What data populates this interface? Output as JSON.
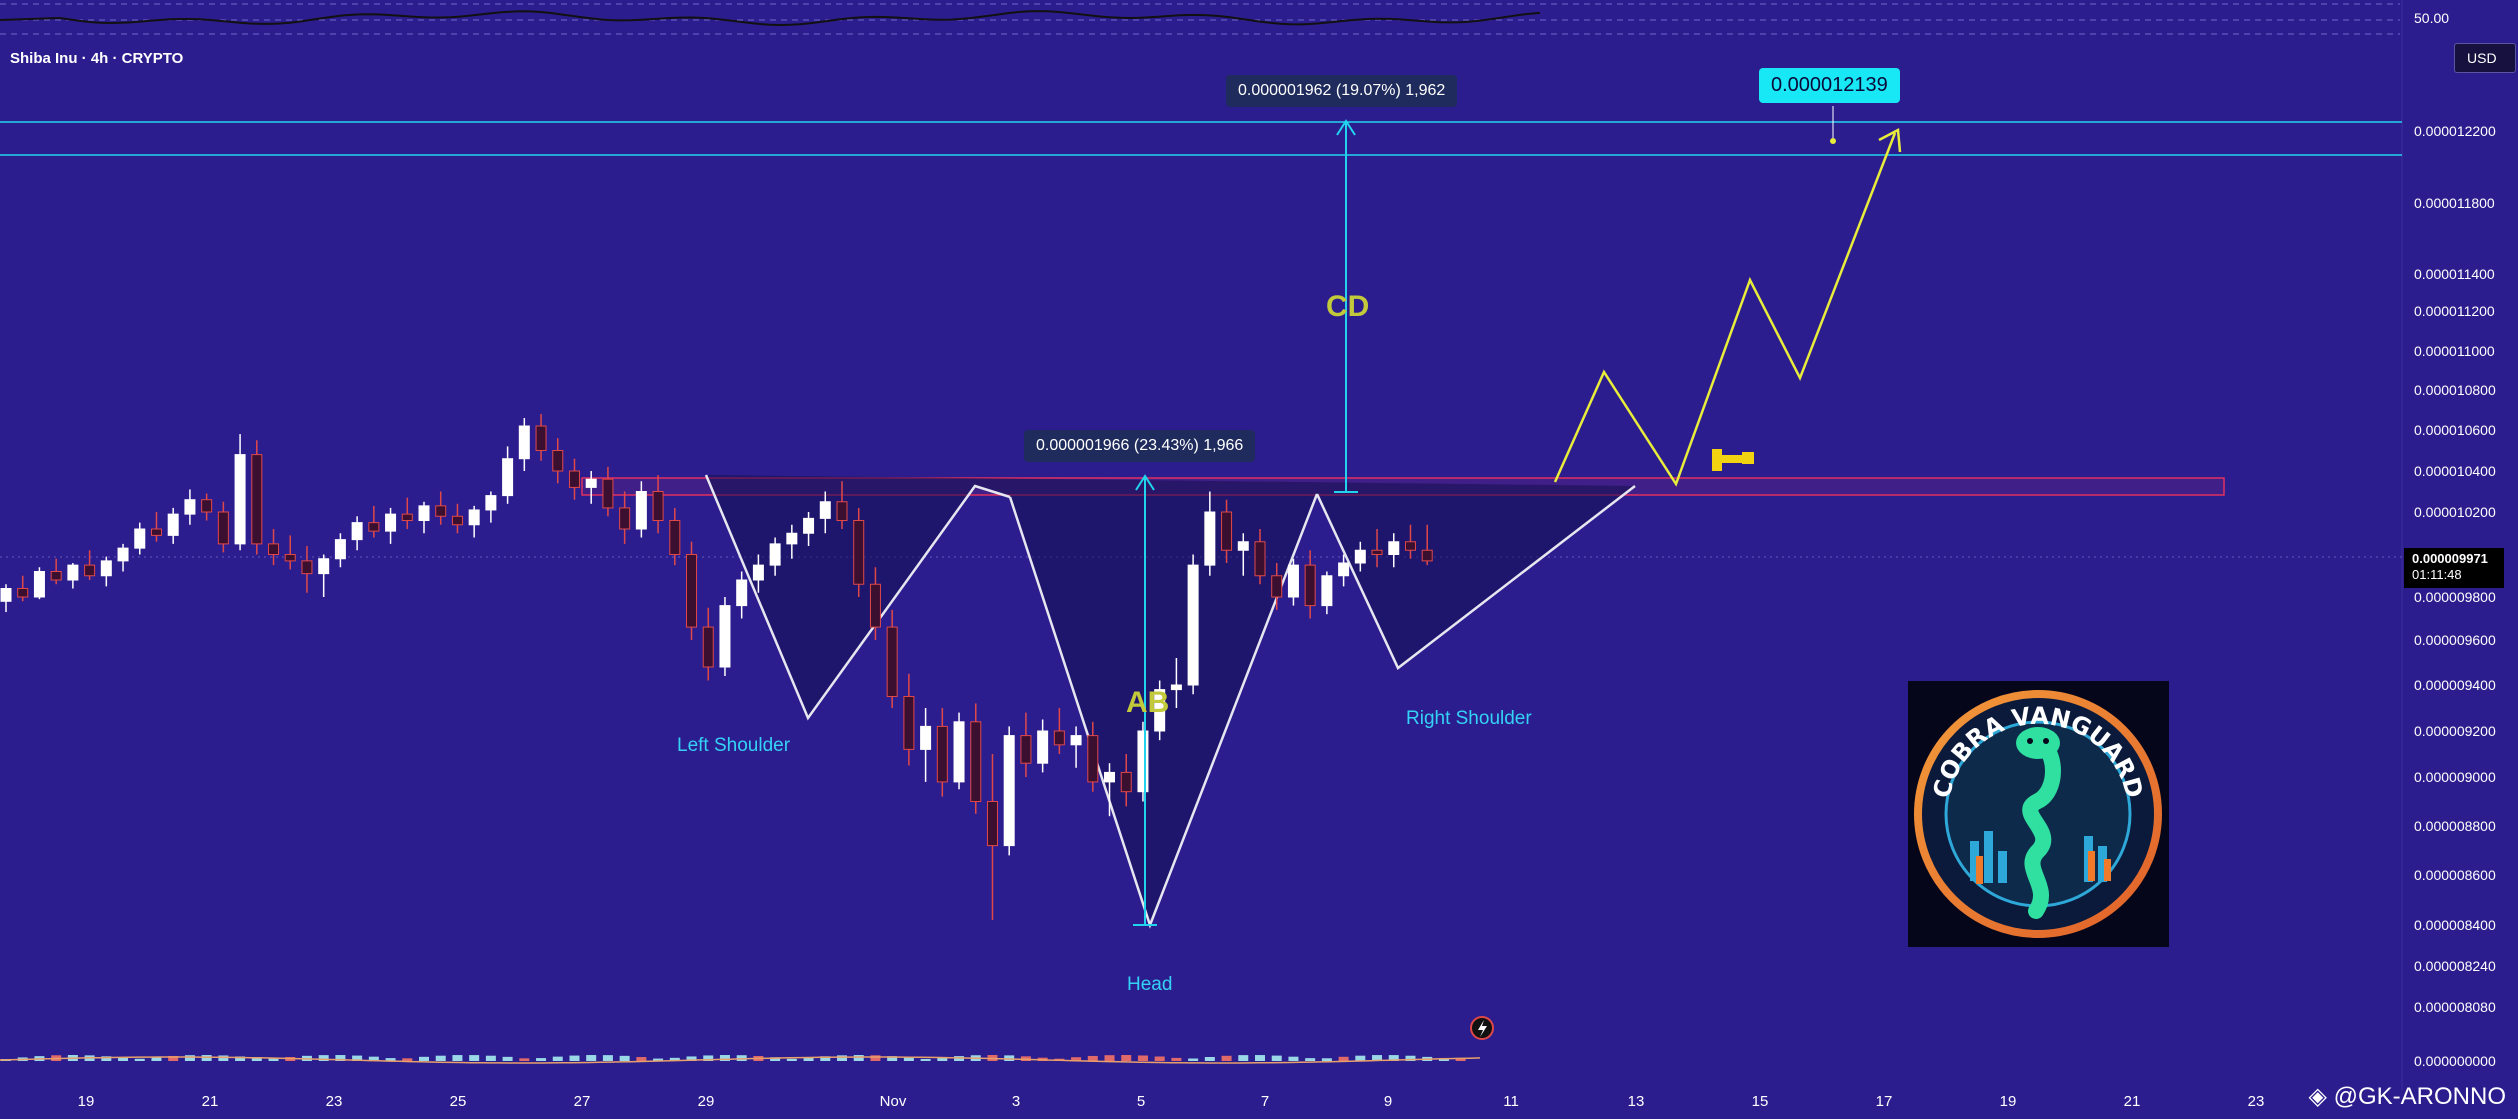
{
  "header": {
    "symbol_line": "Shiba Inu · 4h · CRYPTO",
    "currency_label": "USD"
  },
  "current_price": {
    "value": "0.000009971",
    "countdown": "01:11:48"
  },
  "top_oscillator": {
    "label": "50.00"
  },
  "chart_data": {
    "type": "candlestick",
    "title": "Shiba Inu · 4h · CRYPTO",
    "pattern": "inverse head and shoulders",
    "y_axis": {
      "unit": "USD",
      "scale": "log",
      "ticks": [
        "0.000012200",
        "0.000011800",
        "0.000011400",
        "0.000011200",
        "0.000011000",
        "0.000010800",
        "0.000010600",
        "0.000010400",
        "0.000010200",
        "0.000009800",
        "0.000009600",
        "0.000009400",
        "0.000009200",
        "0.000009000",
        "0.000008800",
        "0.000008600",
        "0.000008400",
        "0.000008240",
        "0.000008080",
        "0.000000000"
      ]
    },
    "x_axis": {
      "ticks": [
        "19",
        "21",
        "23",
        "25",
        "27",
        "29",
        "Nov",
        "3",
        "5",
        "7",
        "9",
        "11",
        "13",
        "15",
        "17",
        "19",
        "21",
        "23"
      ]
    },
    "candles_ohlc": [
      [
        9.78e-06,
        9.86e-06,
        9.73e-06,
        9.84e-06
      ],
      [
        9.84e-06,
        9.9e-06,
        9.78e-06,
        9.8e-06
      ],
      [
        9.8e-06,
        9.94e-06,
        9.79e-06,
        9.92e-06
      ],
      [
        9.92e-06,
        9.98e-06,
        9.86e-06,
        9.88e-06
      ],
      [
        9.88e-06,
        9.96e-06,
        9.84e-06,
        9.95e-06
      ],
      [
        9.95e-06,
        1.002e-05,
        9.88e-06,
        9.9e-06
      ],
      [
        9.9e-06,
        9.99e-06,
        9.85e-06,
        9.97e-06
      ],
      [
        9.97e-06,
        1.005e-05,
        9.92e-06,
        1.003e-05
      ],
      [
        1.003e-05,
        1.015e-05,
        1e-05,
        1.012e-05
      ],
      [
        1.012e-05,
        1.02e-05,
        1.006e-05,
        1.009e-05
      ],
      [
        1.009e-05,
        1.022e-05,
        1.005e-05,
        1.019e-05
      ],
      [
        1.019e-05,
        1.031e-05,
        1.014e-05,
        1.026e-05
      ],
      [
        1.026e-05,
        1.029e-05,
        1.016e-05,
        1.02e-05
      ],
      [
        1.02e-05,
        1.025e-05,
        1.001e-05,
        1.005e-05
      ],
      [
        1.005e-05,
        1.058e-05,
        1.002e-05,
        1.048e-05
      ],
      [
        1.048e-05,
        1.055e-05,
        1e-05,
        1.005e-05
      ],
      [
        1.005e-05,
        1.012e-05,
        9.95e-06,
        1e-05
      ],
      [
        1e-05,
        1.009e-05,
        9.93e-06,
        9.97e-06
      ],
      [
        9.97e-06,
        1.004e-05,
        9.82e-06,
        9.91e-06
      ],
      [
        9.91e-06,
        1e-05,
        9.8e-06,
        9.98e-06
      ],
      [
        9.98e-06,
        1.01e-05,
        9.94e-06,
        1.007e-05
      ],
      [
        1.007e-05,
        1.018e-05,
        1.002e-05,
        1.015e-05
      ],
      [
        1.015e-05,
        1.023e-05,
        1.008e-05,
        1.011e-05
      ],
      [
        1.011e-05,
        1.022e-05,
        1.005e-05,
        1.019e-05
      ],
      [
        1.019e-05,
        1.027e-05,
        1.012e-05,
        1.016e-05
      ],
      [
        1.016e-05,
        1.025e-05,
        1.01e-05,
        1.023e-05
      ],
      [
        1.023e-05,
        1.03e-05,
        1.014e-05,
        1.018e-05
      ],
      [
        1.018e-05,
        1.024e-05,
        1.01e-05,
        1.014e-05
      ],
      [
        1.014e-05,
        1.023e-05,
        1.008e-05,
        1.021e-05
      ],
      [
        1.021e-05,
        1.03e-05,
        1.015e-05,
        1.028e-05
      ],
      [
        1.028e-05,
        1.052e-05,
        1.024e-05,
        1.046e-05
      ],
      [
        1.046e-05,
        1.066e-05,
        1.04e-05,
        1.062e-05
      ],
      [
        1.062e-05,
        1.068e-05,
        1.045e-05,
        1.05e-05
      ],
      [
        1.05e-05,
        1.056e-05,
        1.034e-05,
        1.04e-05
      ],
      [
        1.04e-05,
        1.046e-05,
        1.026e-05,
        1.032e-05
      ],
      [
        1.032e-05,
        1.04e-05,
        1.024e-05,
        1.036e-05
      ],
      [
        1.036e-05,
        1.042e-05,
        1.018e-05,
        1.022e-05
      ],
      [
        1.022e-05,
        1.03e-05,
        1.005e-05,
        1.012e-05
      ],
      [
        1.012e-05,
        1.035e-05,
        1.008e-05,
        1.03e-05
      ],
      [
        1.03e-05,
        1.038e-05,
        1.01e-05,
        1.016e-05
      ],
      [
        1.016e-05,
        1.022e-05,
        9.95e-06,
        1e-05
      ],
      [
        1e-05,
        1.006e-05,
        9.6e-06,
        9.66e-06
      ],
      [
        9.66e-06,
        9.75e-06,
        9.42e-06,
        9.48e-06
      ],
      [
        9.48e-06,
        9.8e-06,
        9.44e-06,
        9.76e-06
      ],
      [
        9.76e-06,
        9.92e-06,
        9.7e-06,
        9.88e-06
      ],
      [
        9.88e-06,
        1e-05,
        9.82e-06,
        9.95e-06
      ],
      [
        9.95e-06,
        1.008e-05,
        9.9e-06,
        1.005e-05
      ],
      [
        1.005e-05,
        1.014e-05,
        9.98e-06,
        1.01e-05
      ],
      [
        1.01e-05,
        1.02e-05,
        1.004e-05,
        1.017e-05
      ],
      [
        1.017e-05,
        1.03e-05,
        1.01e-05,
        1.025e-05
      ],
      [
        1.025e-05,
        1.035e-05,
        1.012e-05,
        1.016e-05
      ],
      [
        1.016e-05,
        1.022e-05,
        9.8e-06,
        9.86e-06
      ],
      [
        9.86e-06,
        9.94e-06,
        9.6e-06,
        9.66e-06
      ],
      [
        9.66e-06,
        9.74e-06,
        9.3e-06,
        9.35e-06
      ],
      [
        9.35e-06,
        9.45e-06,
        9.05e-06,
        9.12e-06
      ],
      [
        9.12e-06,
        9.3e-06,
        8.98e-06,
        9.22e-06
      ],
      [
        9.22e-06,
        9.3e-06,
        8.92e-06,
        8.98e-06
      ],
      [
        8.98e-06,
        9.28e-06,
        8.95e-06,
        9.24e-06
      ],
      [
        9.24e-06,
        9.32e-06,
        8.85e-06,
        8.9e-06
      ],
      [
        8.9e-06,
        9.1e-06,
        8.42e-06,
        8.72e-06
      ],
      [
        8.72e-06,
        9.22e-06,
        8.68e-06,
        9.18e-06
      ],
      [
        9.18e-06,
        9.28e-06,
        9e-06,
        9.06e-06
      ],
      [
        9.06e-06,
        9.25e-06,
        9.02e-06,
        9.2e-06
      ],
      [
        9.2e-06,
        9.3e-06,
        9.1e-06,
        9.14e-06
      ],
      [
        9.14e-06,
        9.22e-06,
        9.04e-06,
        9.18e-06
      ],
      [
        9.18e-06,
        9.24e-06,
        8.94e-06,
        8.98e-06
      ],
      [
        8.98e-06,
        9.06e-06,
        8.84e-06,
        9.02e-06
      ],
      [
        9.02e-06,
        9.1e-06,
        8.88e-06,
        8.94e-06
      ],
      [
        8.94e-06,
        9.24e-06,
        8.9e-06,
        9.2e-06
      ],
      [
        9.2e-06,
        9.42e-06,
        9.16e-06,
        9.38e-06
      ],
      [
        9.38e-06,
        9.52e-06,
        9.3e-06,
        9.4e-06
      ],
      [
        9.4e-06,
        1e-05,
        9.36e-06,
        9.95e-06
      ],
      [
        9.95e-06,
        1.03e-05,
        9.9e-06,
        1.02e-05
      ],
      [
        1.02e-05,
        1.026e-05,
        9.96e-06,
        1.002e-05
      ],
      [
        1.002e-05,
        1.01e-05,
        9.9e-06,
        1.006e-05
      ],
      [
        1.006e-05,
        1.012e-05,
        9.86e-06,
        9.9e-06
      ],
      [
        9.9e-06,
        9.96e-06,
        9.74e-06,
        9.8e-06
      ],
      [
        9.8e-06,
        9.98e-06,
        9.76e-06,
        9.95e-06
      ],
      [
        9.95e-06,
        1.002e-05,
        9.7e-06,
        9.76e-06
      ],
      [
        9.76e-06,
        9.92e-06,
        9.72e-06,
        9.9e-06
      ],
      [
        9.9e-06,
        1e-05,
        9.85e-06,
        9.96e-06
      ],
      [
        9.96e-06,
        1.006e-05,
        9.92e-06,
        1.002e-05
      ],
      [
        1.002e-05,
        1.012e-05,
        9.94e-06,
        1e-05
      ],
      [
        1e-05,
        1.01e-05,
        9.94e-06,
        1.006e-05
      ],
      [
        1.006e-05,
        1.014e-05,
        9.98e-06,
        1.002e-05
      ],
      [
        1.002e-05,
        1.014e-05,
        9.95e-06,
        9.97e-06
      ]
    ],
    "annotations": {
      "measure_ab_label": "0.000001966 (23.43%) 1,966",
      "measure_cd_label": "0.000001962 (19.07%) 1,962",
      "target_price": "0.000012139",
      "ab_label": "AB",
      "cd_label": "CD",
      "left_shoulder": "Left Shoulder",
      "head": "Head",
      "right_shoulder": "Right Shoulder"
    }
  },
  "logo": {
    "text": "COBRA VANGUARD"
  },
  "watermark": {
    "text": "@GK-ARONNO"
  },
  "colors": {
    "background": "#2c1d8e",
    "bull_candle": "#ffffff",
    "bear_candle": "#e04848",
    "target_line": "#22d3ee",
    "projection": "#e8ec3a",
    "neckline_zone": "#e03060"
  }
}
